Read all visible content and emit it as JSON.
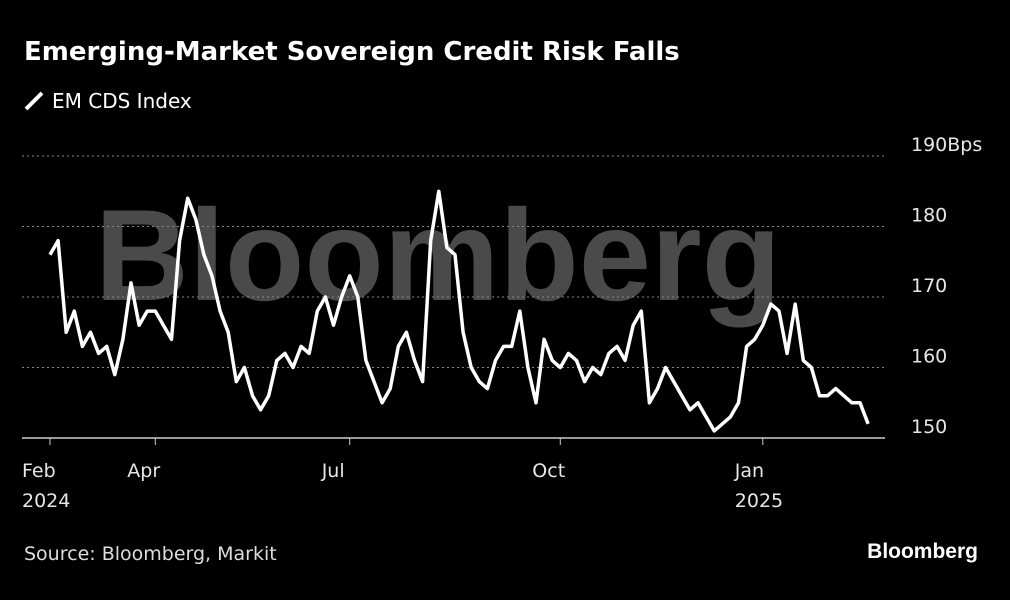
{
  "chart_data": {
    "type": "line",
    "title": "Emerging-Market Sovereign Credit Risk Falls",
    "source": "Source: Bloomberg, Markit",
    "logo": "Bloomberg",
    "watermark": "Bloomberg",
    "categories": [
      "Feb 2024",
      null,
      null,
      null,
      null,
      null,
      null,
      null,
      null,
      null,
      null,
      null,
      null,
      "Apr",
      null,
      null,
      null,
      null,
      null,
      null,
      null,
      null,
      null,
      null,
      null,
      null,
      null,
      null,
      null,
      null,
      null,
      null,
      null,
      null,
      null,
      null,
      null,
      "Jul",
      null,
      null,
      null,
      null,
      null,
      null,
      null,
      null,
      null,
      null,
      null,
      null,
      null,
      null,
      null,
      null,
      null,
      null,
      null,
      null,
      null,
      null,
      null,
      null,
      null,
      "Oct",
      null,
      null,
      null,
      null,
      null,
      null,
      null,
      null,
      null,
      null,
      null,
      null,
      null,
      null,
      null,
      null,
      null,
      null,
      null,
      null,
      null,
      null,
      null,
      null,
      "Jan 2025",
      null,
      null,
      null,
      null,
      null,
      null,
      null,
      null,
      null,
      null,
      null,
      null,
      null
    ],
    "series": [
      {
        "name": "EM CDS Index",
        "color": "#ffffff",
        "values": [
          176,
          178,
          165,
          168,
          163,
          165,
          162,
          163,
          159,
          164,
          172,
          166,
          168,
          168,
          166,
          164,
          178,
          184,
          181,
          176,
          173,
          168,
          165,
          158,
          160,
          156,
          154,
          156,
          161,
          162,
          160,
          163,
          162,
          168,
          170,
          166,
          170,
          173,
          170,
          161,
          158,
          155,
          157,
          163,
          165,
          161,
          158,
          178,
          185,
          177,
          176,
          165,
          160,
          158,
          157,
          161,
          163,
          163,
          168,
          160,
          155,
          164,
          161,
          160,
          162,
          161,
          158,
          160,
          159,
          162,
          163,
          161,
          166,
          168,
          155,
          157,
          160,
          158,
          156,
          154,
          155,
          153,
          151,
          152,
          153,
          155,
          163,
          164,
          166,
          169,
          168,
          162,
          169,
          161,
          160,
          156,
          156,
          157,
          156,
          155,
          155,
          152
        ]
      }
    ],
    "ylim": [
      150,
      190
    ],
    "yticks": [
      150,
      160,
      170,
      180,
      {
        "value": 190,
        "label": "190Bps"
      }
    ],
    "grid": true
  }
}
